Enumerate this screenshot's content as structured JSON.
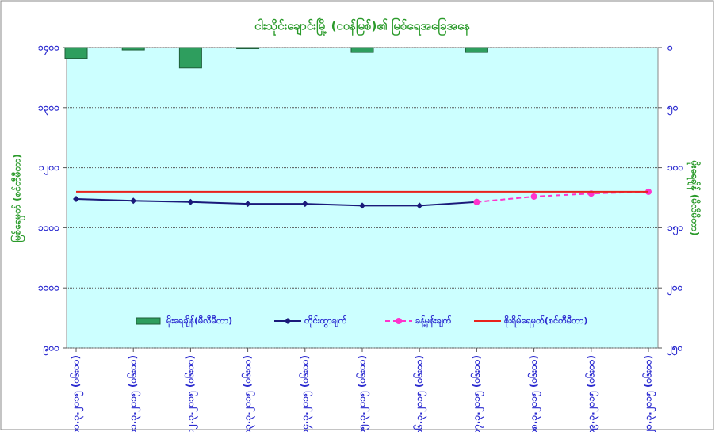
{
  "chart_data": {
    "type": "combo",
    "title": "ငါးသိုင်းချောင်းမြို့ (ငဝန်မြစ်)၏ မြစ်ရေအခြေအနေ",
    "y_label": "မြစ်ရေမှတ် (စင်တီမီတာ)",
    "y2_label": "မိုးရေချိန် (မီလီမီတာ)",
    "categories": [
      "၁၀.၃.၂၀၁၅ (၀၆း၀၀)",
      "၁၁.၃.၂၀၁၅ (၀၆း၀၀)",
      "၁၂.၃.၂၀၁၅ (၀၆း၀၀)",
      "၁၃.၃.၂၀၁၅ (၀၆း၀၀)",
      "၁၄.၃.၂၀၁၅ (၀၆း၀၀)",
      "၁၅.၃.၂၀၁၅ (၀၆း၀၀)",
      "၁၆.၃.၂၀၁၅ (၀၆း၀၀)",
      "၁၇.၃.၂၀၁၅ (၀၆း၀၀)",
      "၁၈.၃.၂၀၁၅ (၀၆း၀၀)",
      "၁၉.၃.၂၀၁၅ (၀၆း၀၀)",
      "၂၀.၃.၂၀၁၅ (၀၆း၀၀)"
    ],
    "series": [
      {
        "name": "မိုးရေချိန်(မီလီမီတာ)",
        "kind": "bar",
        "axis": "y2",
        "color": "#2e9e5e",
        "values": [
          9,
          2,
          17,
          1,
          null,
          4,
          null,
          4,
          null,
          null,
          null
        ]
      },
      {
        "name": "တိုင်းထွာချက်",
        "kind": "line",
        "color": "#1a1a7a",
        "marker": "diamond",
        "values": [
          1148,
          1145,
          1143,
          1140,
          1140,
          1137,
          1137,
          1143,
          null,
          null,
          null
        ]
      },
      {
        "name": "ခန့်မှန်းချက်",
        "kind": "line",
        "dashed": true,
        "color": "#ff33cc",
        "marker": "circle",
        "values": [
          null,
          null,
          null,
          null,
          null,
          null,
          null,
          1143,
          1152,
          1157,
          1160
        ]
      },
      {
        "name": "စိုးရိမ်ရေမှတ်(စင်တီမီတာ)",
        "kind": "line",
        "color": "#e8231c",
        "values": [
          1160,
          1160,
          1160,
          1160,
          1160,
          1160,
          1160,
          1160,
          1160,
          1160,
          1160
        ]
      }
    ],
    "ylim": [
      900,
      1400
    ],
    "yticks": [
      {
        "value": 900,
        "label": "၉၀၀"
      },
      {
        "value": 1000,
        "label": "၁၀၀၀"
      },
      {
        "value": 1100,
        "label": "၁၁၀၀"
      },
      {
        "value": 1200,
        "label": "၁၂၀၀"
      },
      {
        "value": 1300,
        "label": "၁၃၀၀"
      },
      {
        "value": 1400,
        "label": "၁၄၀၀"
      }
    ],
    "y2lim": [
      250,
      0
    ],
    "y2ticks": [
      {
        "value": 0,
        "label": "၀"
      },
      {
        "value": 50,
        "label": "၅၀"
      },
      {
        "value": 100,
        "label": "၁၀၀"
      },
      {
        "value": 150,
        "label": "၁၅၀"
      },
      {
        "value": 200,
        "label": "၂၀၀"
      },
      {
        "value": 250,
        "label": "၂၅၀"
      }
    ],
    "grid": true,
    "legend": "bottom",
    "background": "#ccffff"
  }
}
